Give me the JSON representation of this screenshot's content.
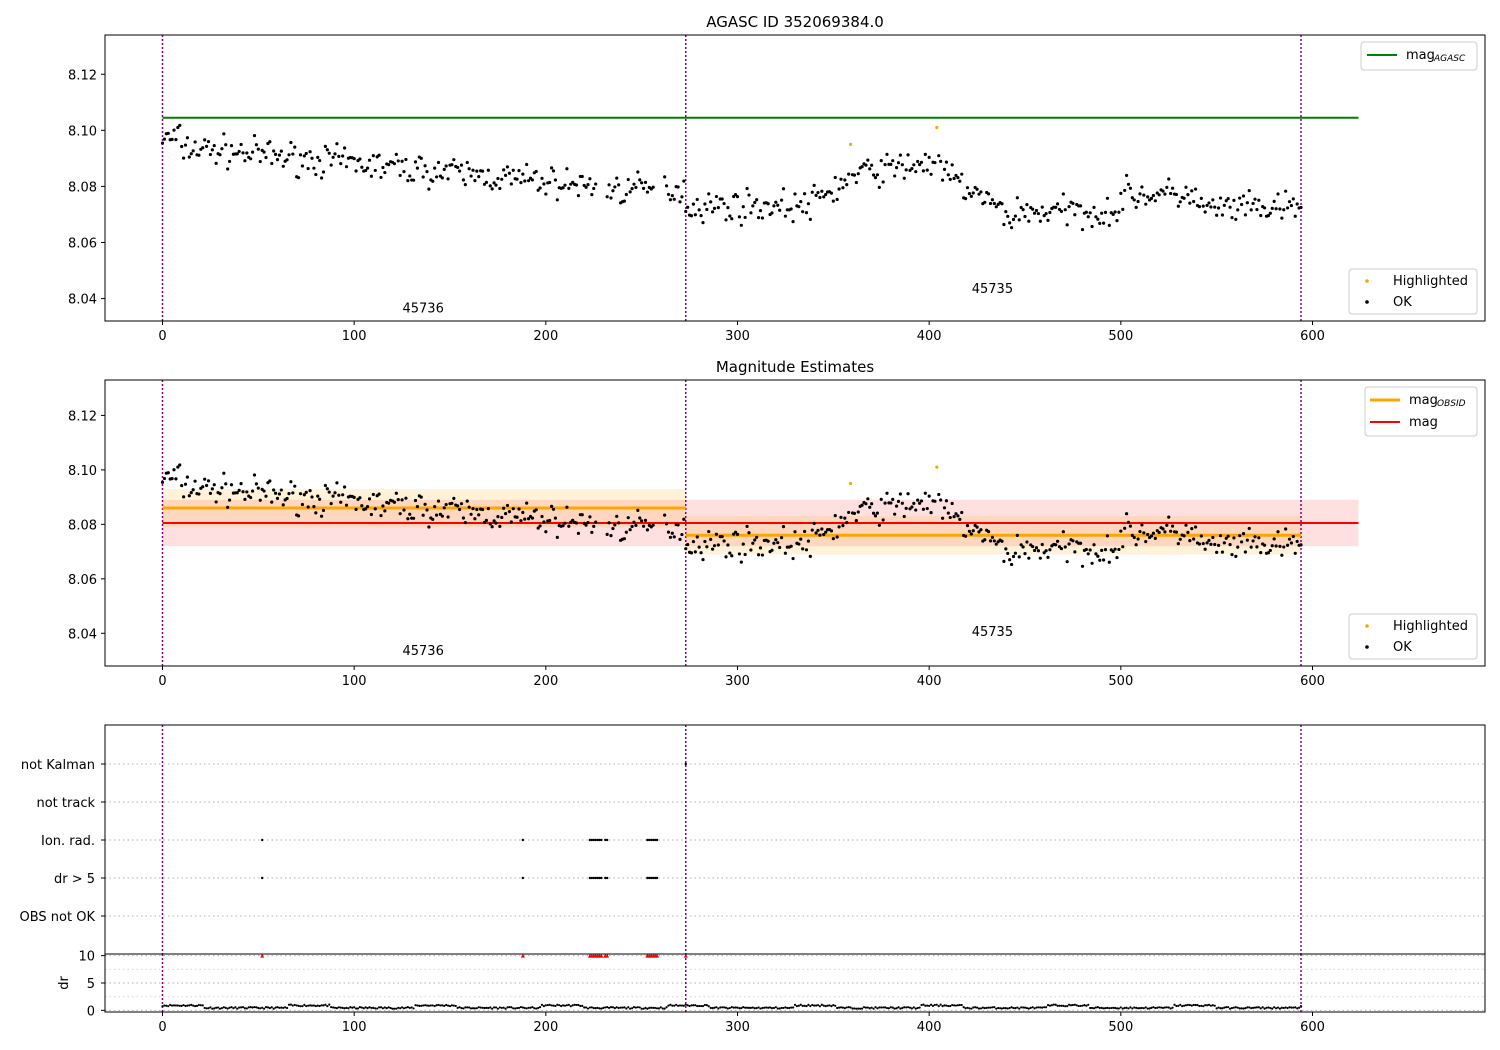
{
  "chart_data": [
    {
      "type": "scatter",
      "title": "AGASC ID 352069384.0",
      "xlim": [
        -30,
        690
      ],
      "ylim": [
        8.032,
        8.134
      ],
      "xticks": [
        0,
        100,
        200,
        300,
        400,
        500,
        600
      ],
      "yticks": [
        8.04,
        8.06,
        8.08,
        8.1,
        8.12
      ],
      "obs_boundaries": [
        0,
        273,
        594
      ],
      "obsids": [
        {
          "label": "45736",
          "x": 136,
          "y": 8.035
        },
        {
          "label": "45735",
          "x": 433,
          "y": 8.042
        }
      ],
      "mag_agasc": {
        "value": 8.1045,
        "x": [
          0,
          624
        ],
        "color": "#008000"
      },
      "highlighted": [
        [
          359,
          8.095
        ],
        [
          404,
          8.101
        ]
      ],
      "legend_upper": [
        {
          "label": "mag",
          "sub": "AGASC",
          "color": "#008000",
          "marker": "line"
        }
      ],
      "legend_lower": [
        {
          "label": "Highlighted",
          "color": "#ffa500",
          "marker": "dot"
        },
        {
          "label": "OK",
          "color": "#000000",
          "marker": "dot"
        }
      ]
    },
    {
      "type": "scatter",
      "title": "Magnitude Estimates",
      "xlim": [
        -30,
        690
      ],
      "ylim": [
        8.028,
        8.133
      ],
      "xticks": [
        0,
        100,
        200,
        300,
        400,
        500,
        600
      ],
      "yticks": [
        8.04,
        8.06,
        8.08,
        8.1,
        8.12
      ],
      "obs_boundaries": [
        0,
        273,
        594
      ],
      "obsids": [
        {
          "label": "45736",
          "x": 136,
          "y": 8.032
        },
        {
          "label": "45735",
          "x": 433,
          "y": 8.039
        }
      ],
      "mag": {
        "value": 8.0805,
        "band": [
          8.072,
          8.089
        ],
        "x": [
          0,
          624
        ],
        "color": "#ff0000"
      },
      "mag_obsid": [
        {
          "x": [
            0,
            273
          ],
          "value": 8.086,
          "band": [
            8.079,
            8.093
          ]
        },
        {
          "x": [
            273,
            594
          ],
          "value": 8.076,
          "band": [
            8.069,
            8.083
          ]
        }
      ],
      "highlighted": [
        [
          359,
          8.095
        ],
        [
          404,
          8.101
        ]
      ],
      "legend_upper": [
        {
          "label": "mag",
          "sub": "OBSID",
          "color": "#ffa500",
          "marker": "line"
        },
        {
          "label": "mag",
          "sub": "",
          "color": "#ff0000",
          "marker": "line"
        }
      ],
      "legend_lower": [
        {
          "label": "Highlighted",
          "color": "#ffa500",
          "marker": "dot"
        },
        {
          "label": "OK",
          "color": "#000000",
          "marker": "dot"
        }
      ]
    },
    {
      "type": "scatter",
      "title": "",
      "xlim": [
        -30,
        690
      ],
      "flag_labels": [
        "not Kalman",
        "not track",
        "Ion. rad.",
        "dr > 5",
        "OBS not OK"
      ],
      "flag_points": {
        "not Kalman": [
          273
        ],
        "not track": [],
        "Ion. rad.": [
          52,
          188,
          223,
          224,
          225,
          226,
          227,
          228,
          229,
          231,
          232,
          253,
          254,
          255,
          256,
          257,
          258
        ],
        "dr > 5": [
          52,
          188,
          223,
          224,
          225,
          226,
          227,
          228,
          229,
          231,
          232,
          253,
          254,
          255,
          256,
          257,
          258
        ],
        "OBS not OK": []
      }
    },
    {
      "type": "scatter",
      "ylabel": "dr",
      "xlim": [
        -30,
        690
      ],
      "ylim": [
        -0.3,
        10.3
      ],
      "xticks": [
        0,
        100,
        200,
        300,
        400,
        500,
        600
      ],
      "yticks": [
        0,
        5,
        10
      ],
      "clipped": [
        52,
        188,
        223,
        224,
        225,
        226,
        227,
        228,
        229,
        231,
        232,
        253,
        254,
        255,
        256,
        257,
        258,
        273
      ],
      "clipped_color": "#ff0000"
    }
  ],
  "colors": {
    "ok": "#000000",
    "highlighted": "#ffa500",
    "boundary": "#800080",
    "grid": "#b0b0b0"
  }
}
